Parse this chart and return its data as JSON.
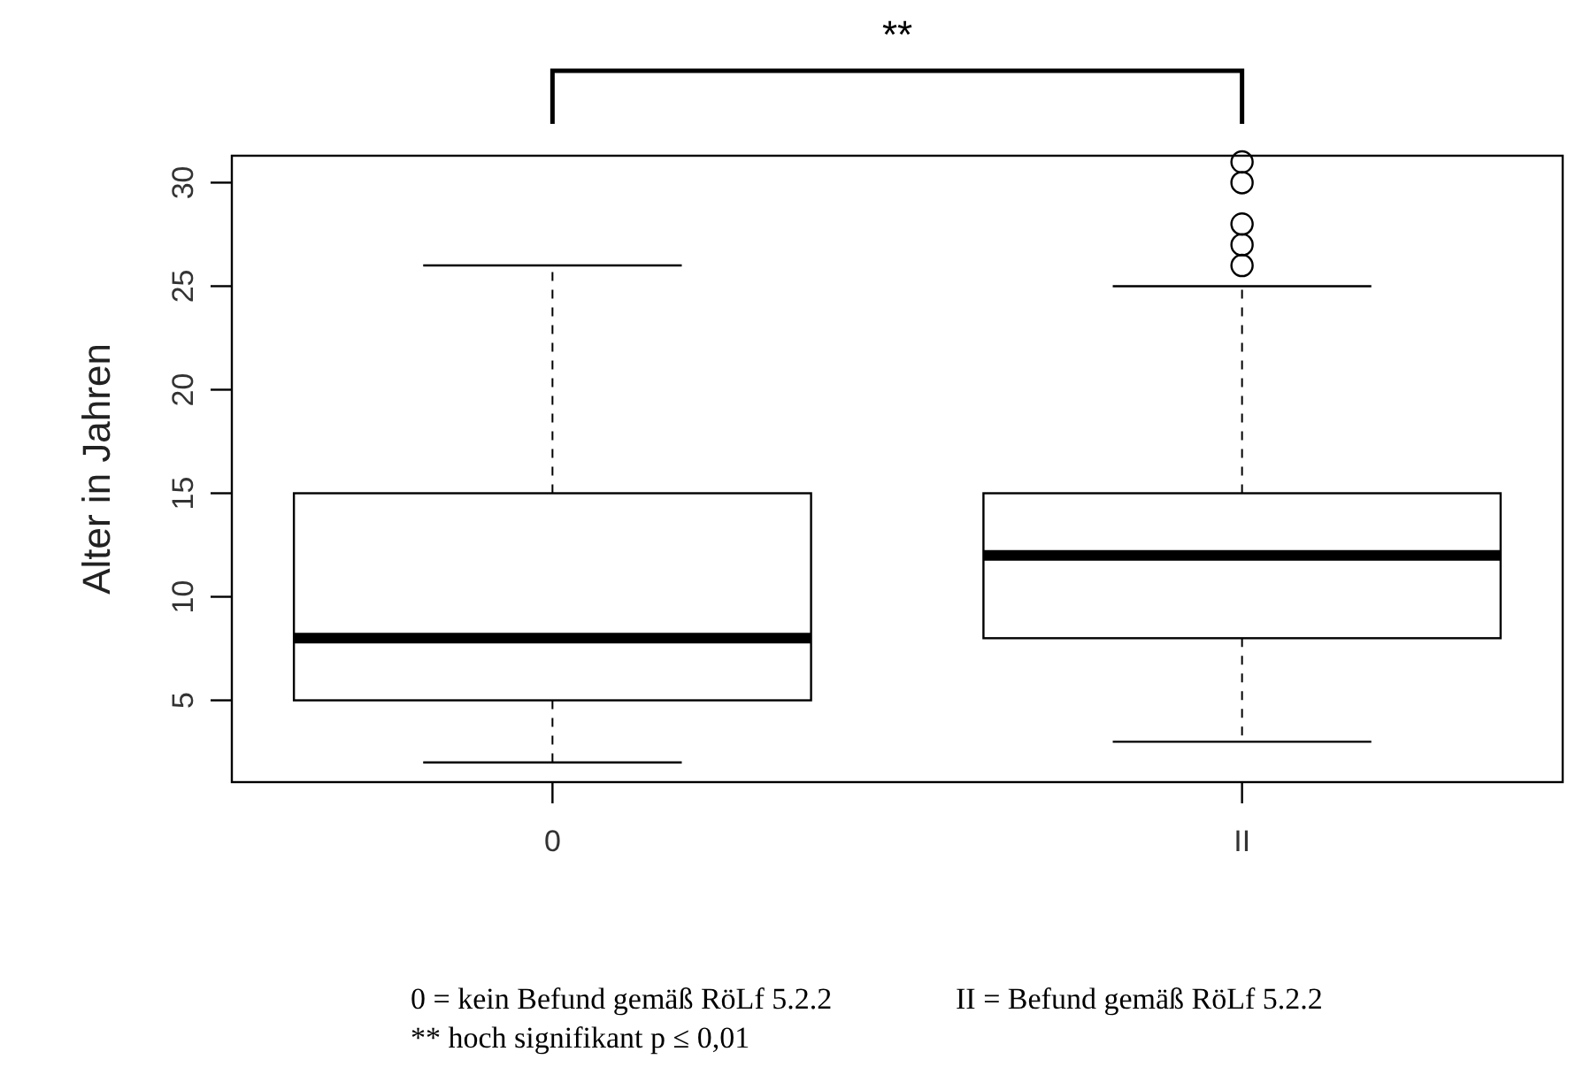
{
  "chart_data": {
    "type": "box",
    "ylabel": "Alter in Jahren",
    "categories": [
      "0",
      "II"
    ],
    "boxes": [
      {
        "low": 2,
        "q1": 5,
        "median": 8,
        "q3": 15,
        "high": 26
      },
      {
        "low": 3,
        "q1": 8,
        "median": 12,
        "q3": 15,
        "high": 25,
        "outliers": [
          26,
          27,
          28,
          30,
          31
        ]
      }
    ],
    "ylim": [
      1.05,
      31.3
    ],
    "yticks": [
      5,
      10,
      15,
      20,
      25,
      30
    ],
    "grid": false,
    "annotations": [
      "**",
      "0 = kein Befund gemäß RöLf 5.2.2",
      "II = Befund gemäß RöLf 5.2.2",
      "** hoch signifikant p ≤ 0,01"
    ]
  }
}
